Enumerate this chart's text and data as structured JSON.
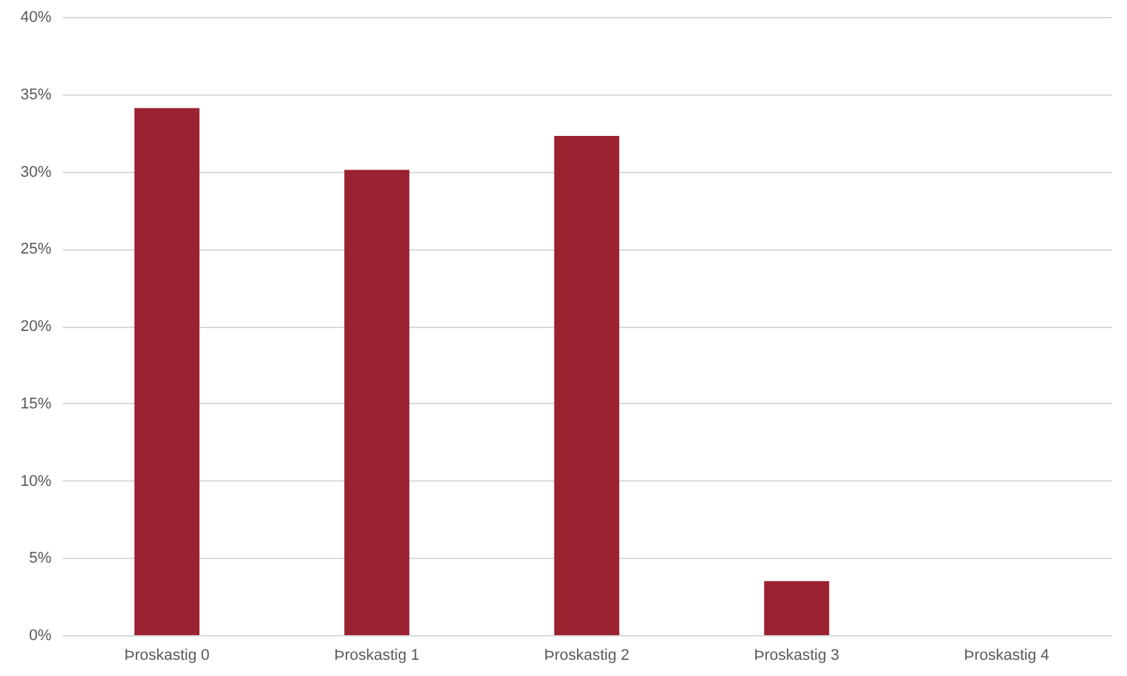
{
  "chart_data": {
    "type": "bar",
    "categories": [
      "Þroskastig 0",
      "Þroskastig 1",
      "Þroskastig 2",
      "Þroskastig 3",
      "Þroskastig 4"
    ],
    "values": [
      34.1,
      30.1,
      32.3,
      3.5,
      0
    ],
    "color": "#9b2230",
    "ylim": [
      0,
      40
    ],
    "yticks": [
      {
        "value": 0,
        "label": "0%"
      },
      {
        "value": 5,
        "label": "5%"
      },
      {
        "value": 10,
        "label": "10%"
      },
      {
        "value": 15,
        "label": "15%"
      },
      {
        "value": 20,
        "label": "20%"
      },
      {
        "value": 25,
        "label": "25%"
      },
      {
        "value": 30,
        "label": "30%"
      },
      {
        "value": 35,
        "label": "35%"
      },
      {
        "value": 40,
        "label": "40%"
      }
    ],
    "grid": true
  }
}
